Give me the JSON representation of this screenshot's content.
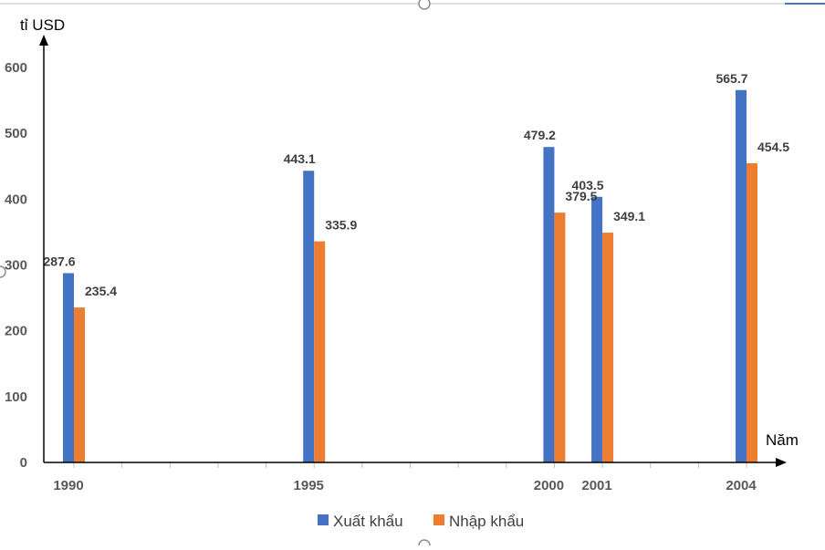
{
  "chart_data": {
    "type": "bar",
    "x": [
      1990,
      1995,
      2000,
      2001,
      2004
    ],
    "categories": [
      "1990",
      "1995",
      "2000",
      "2001",
      "2004"
    ],
    "series": [
      {
        "name": "Xuất khẩu",
        "values": [
          287.6,
          443.1,
          479.2,
          403.5,
          565.7
        ],
        "labels": [
          "287.6",
          "443.1",
          "479.2",
          "403.5",
          "565.7"
        ],
        "color": "#4472c4"
      },
      {
        "name": "Nhập khẩu",
        "values": [
          235.4,
          335.9,
          379.5,
          349.1,
          454.5
        ],
        "labels": [
          "235.4",
          "335.9",
          "379.5",
          "349.1",
          "454.5"
        ],
        "color": "#ed7d31"
      }
    ],
    "ylabel": "tỉ USD",
    "xlabel": "Năm",
    "ylim": [
      0,
      600
    ],
    "yticks": [
      "0",
      "100",
      "200",
      "300",
      "400",
      "500",
      "600"
    ],
    "xlim": [
      1990,
      2004
    ],
    "grid": false,
    "legend": "bottom"
  }
}
